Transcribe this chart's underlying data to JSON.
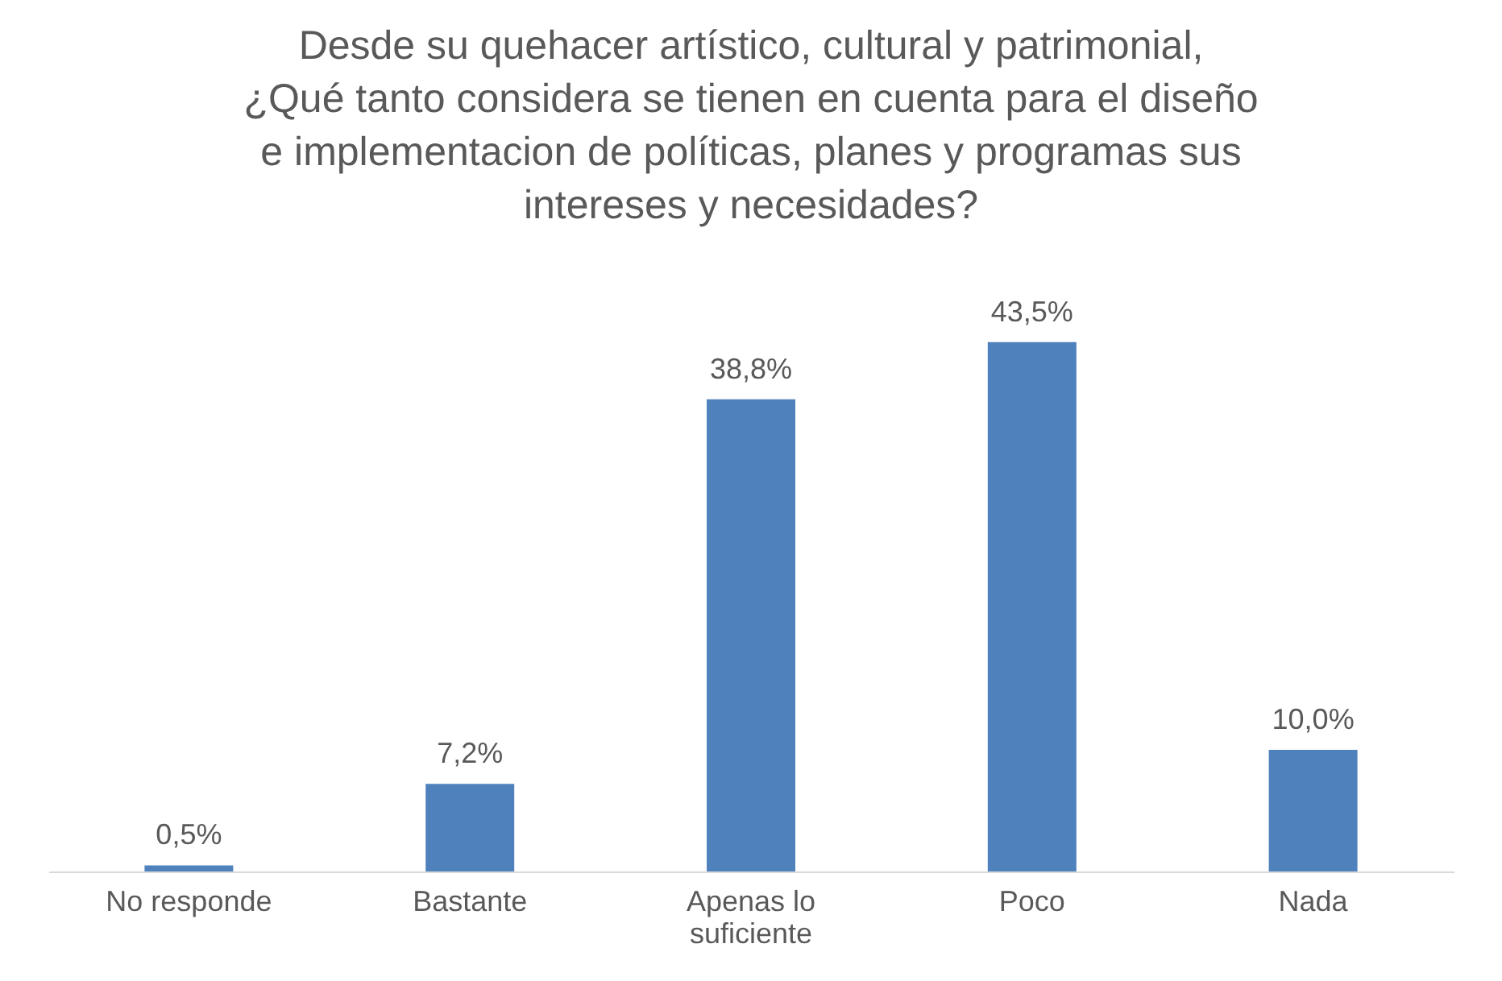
{
  "chart_data": {
    "type": "bar",
    "title": "Desde su quehacer artístico, cultural y patrimonial,\n¿Qué tanto considera se tienen en cuenta para el diseño\ne implementacion de políticas, planes y programas sus\nintereses y necesidades?",
    "categories": [
      "No responde",
      "Bastante",
      "Apenas lo suficiente",
      "Poco",
      "Nada"
    ],
    "values": [
      0.5,
      7.2,
      38.8,
      43.5,
      10.0
    ],
    "value_labels": [
      "0,5%",
      "7,2%",
      "38,8%",
      "43,5%",
      "10,0%"
    ],
    "color": "#4f81bd",
    "grid": false
  }
}
